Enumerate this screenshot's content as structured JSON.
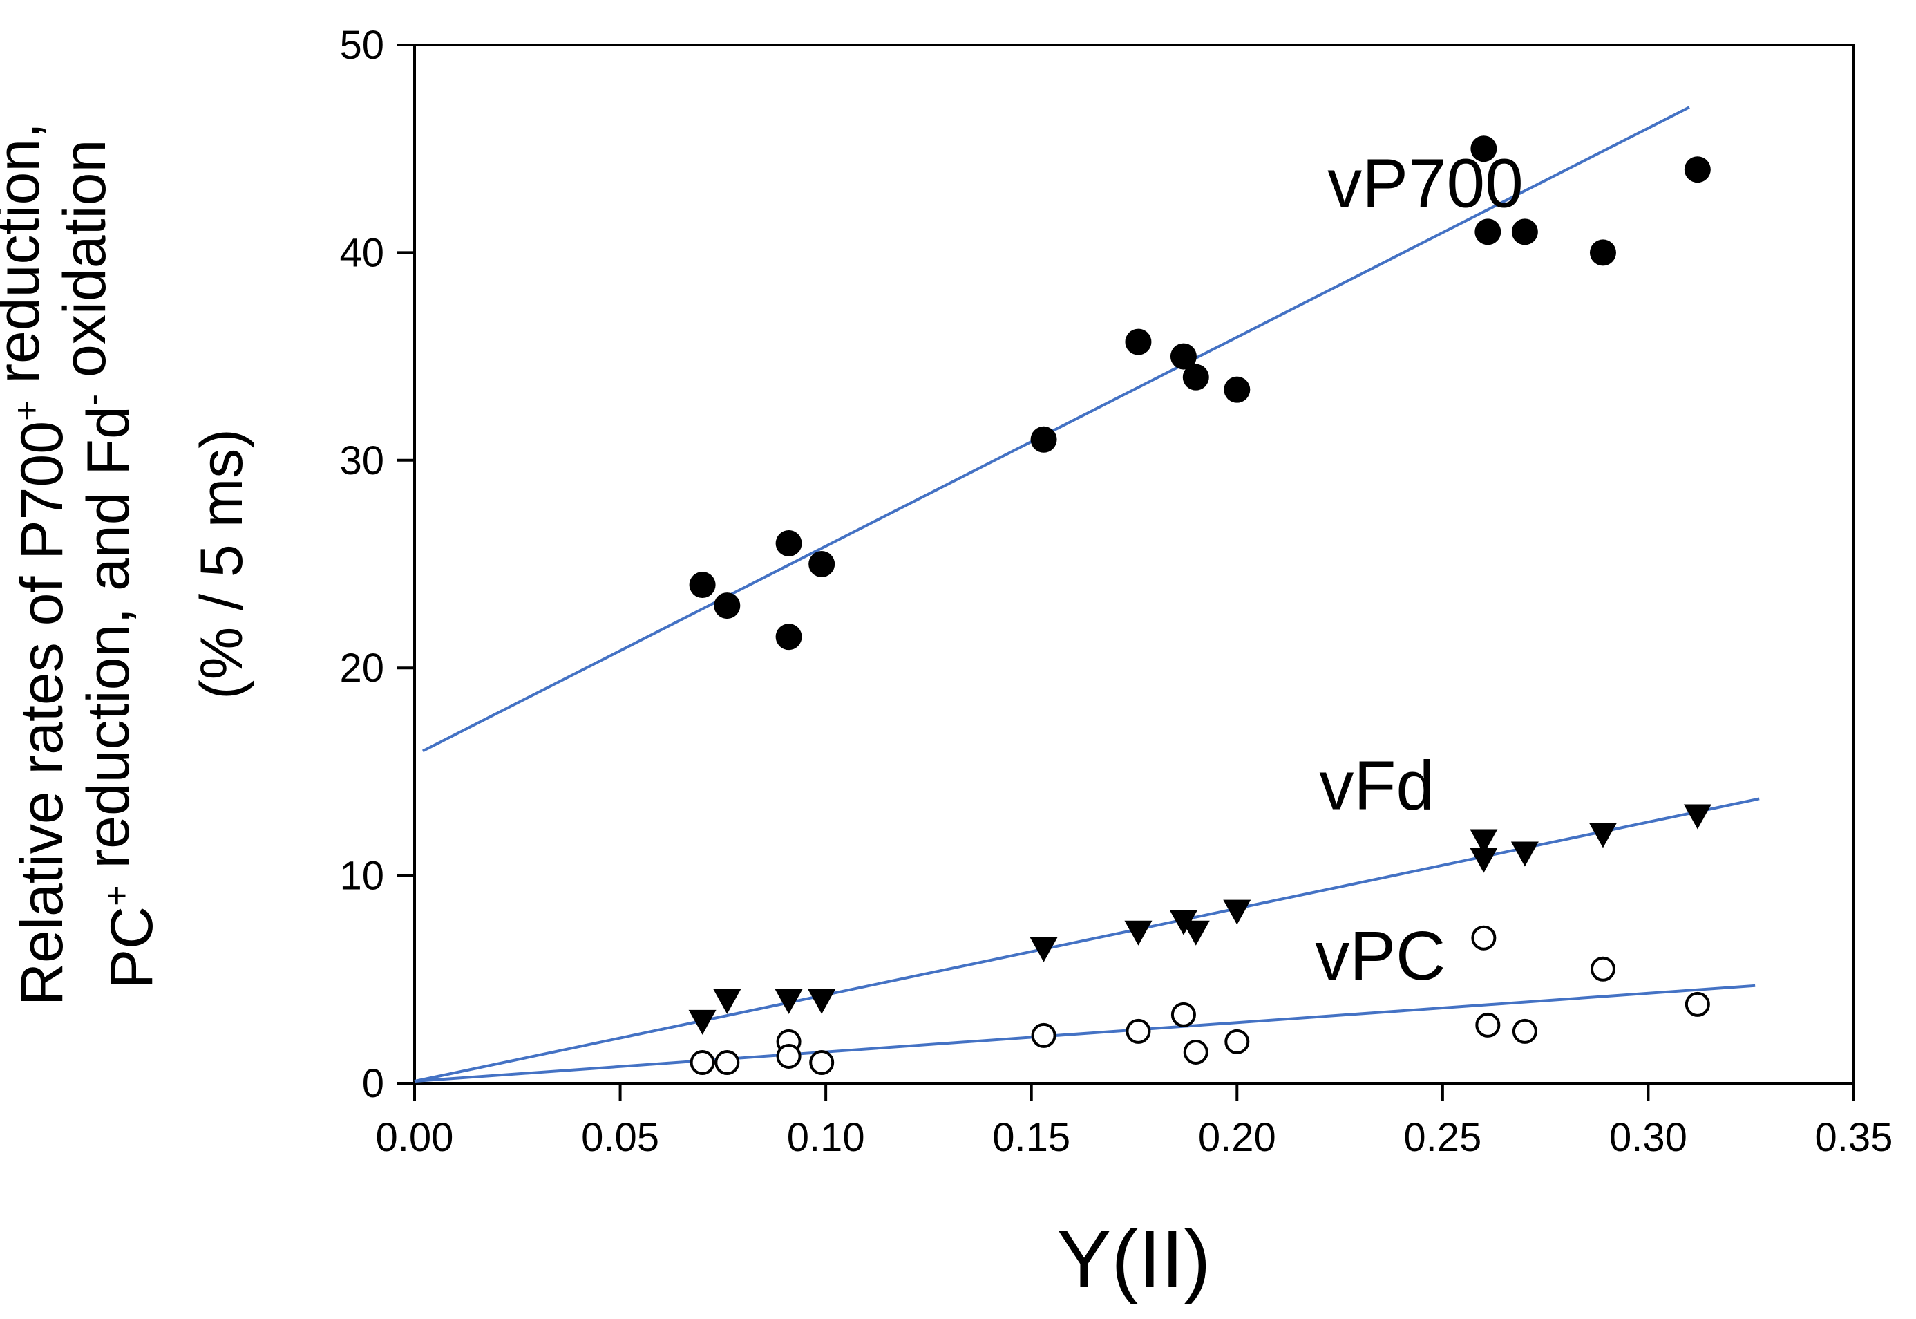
{
  "chart_data": {
    "type": "scatter",
    "title": "",
    "xlabel": "Y(II)",
    "ylabel_lines": [
      [
        "Relative rates of P700",
        "+",
        " reduction,"
      ],
      [
        "PC",
        "+",
        " reduction, and Fd",
        "-",
        " oxidation"
      ],
      [
        "(% / 5 ms)"
      ]
    ],
    "xlim": [
      0,
      0.35
    ],
    "ylim": [
      0,
      50
    ],
    "x_ticks": [
      0.0,
      0.05,
      0.1,
      0.15,
      0.2,
      0.25,
      0.3,
      0.35
    ],
    "x_tick_labels": [
      "0.00",
      "0.05",
      "0.10",
      "0.15",
      "0.20",
      "0.25",
      "0.30",
      "0.35"
    ],
    "y_ticks": [
      0,
      10,
      20,
      30,
      40,
      50
    ],
    "y_tick_labels": [
      "0",
      "10",
      "20",
      "30",
      "40",
      "50"
    ],
    "line_color": "#4472c4",
    "series": [
      {
        "name": "vP700",
        "marker": "filled-circle",
        "points": [
          [
            0.07,
            24.0
          ],
          [
            0.076,
            23.0
          ],
          [
            0.091,
            26.0
          ],
          [
            0.091,
            21.5
          ],
          [
            0.099,
            25.0
          ],
          [
            0.153,
            31.0
          ],
          [
            0.176,
            35.7
          ],
          [
            0.187,
            35.0
          ],
          [
            0.19,
            34.0
          ],
          [
            0.2,
            33.4
          ],
          [
            0.26,
            45.0
          ],
          [
            0.261,
            41.0
          ],
          [
            0.27,
            41.0
          ],
          [
            0.289,
            40.0
          ],
          [
            0.312,
            44.0
          ]
        ],
        "fit": {
          "x": [
            0.002,
            0.31
          ],
          "y": [
            16.0,
            47.0
          ]
        }
      },
      {
        "name": "vFd",
        "marker": "filled-triangle-down",
        "points": [
          [
            0.07,
            3.0
          ],
          [
            0.076,
            4.0
          ],
          [
            0.091,
            4.0
          ],
          [
            0.099,
            4.0
          ],
          [
            0.153,
            6.5
          ],
          [
            0.176,
            7.3
          ],
          [
            0.187,
            7.8
          ],
          [
            0.19,
            7.3
          ],
          [
            0.2,
            8.3
          ],
          [
            0.26,
            11.7
          ],
          [
            0.26,
            10.8
          ],
          [
            0.27,
            11.1
          ],
          [
            0.289,
            12.0
          ],
          [
            0.312,
            12.9
          ]
        ],
        "fit": {
          "x": [
            0.0,
            0.327
          ],
          "y": [
            0.1,
            13.7
          ]
        }
      },
      {
        "name": "vPC",
        "marker": "open-circle",
        "points": [
          [
            0.07,
            1.0
          ],
          [
            0.076,
            1.0
          ],
          [
            0.091,
            2.0
          ],
          [
            0.091,
            1.3
          ],
          [
            0.099,
            1.0
          ],
          [
            0.153,
            2.3
          ],
          [
            0.176,
            2.5
          ],
          [
            0.187,
            3.3
          ],
          [
            0.19,
            1.5
          ],
          [
            0.2,
            2.0
          ],
          [
            0.26,
            7.0
          ],
          [
            0.261,
            2.8
          ],
          [
            0.27,
            2.5
          ],
          [
            0.289,
            5.5
          ],
          [
            0.312,
            3.8
          ]
        ],
        "fit": {
          "x": [
            0.0,
            0.326
          ],
          "y": [
            0.1,
            4.7
          ]
        }
      }
    ],
    "annotations": [
      {
        "text": "vP700",
        "x": 0.222,
        "y": 42.2
      },
      {
        "text": "vFd",
        "x": 0.22,
        "y": 13.2
      },
      {
        "text": "vPC",
        "x": 0.219,
        "y": 5.0
      }
    ]
  }
}
